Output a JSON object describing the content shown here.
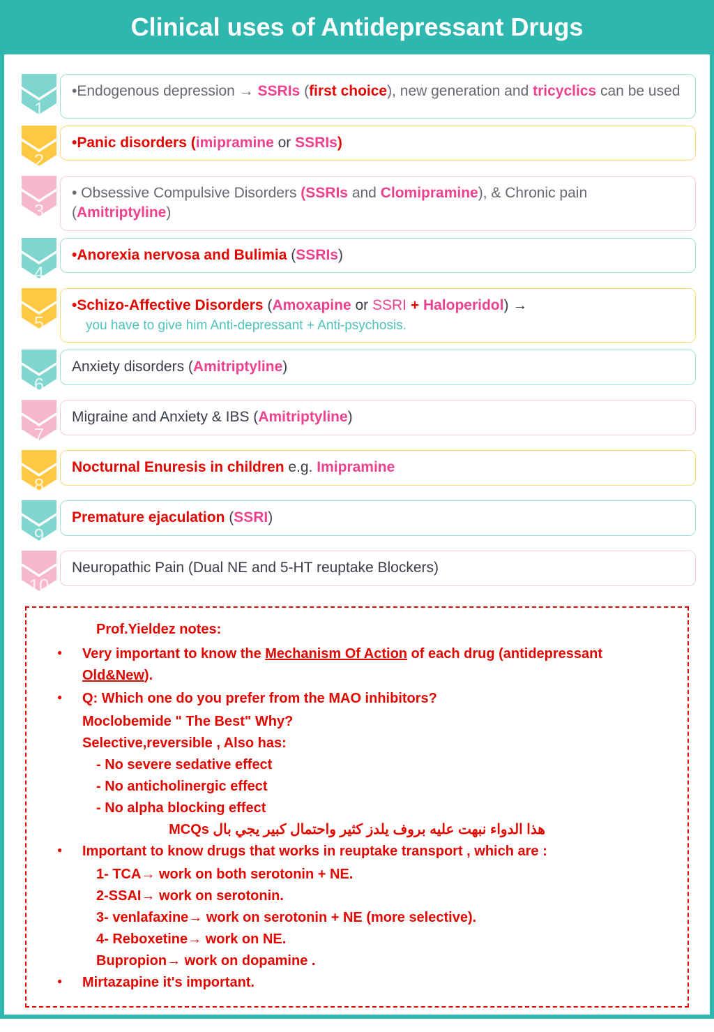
{
  "title": "Clinical uses of Antidepressant Drugs",
  "colors": {
    "teal": "#7fd6cf",
    "yellow": "#ffc842",
    "pink": "#f7b7cb",
    "border_teal": "#9fe0da",
    "border_yellow": "#ffd978",
    "border_pink": "#f9cbd8",
    "txt_red": "#e10600",
    "txt_pink": "#ec428e",
    "txt_teal": "#4fc2ba",
    "txt_gray": "#656772",
    "txt_dark": "#3a3d4a"
  },
  "items": [
    {
      "num": "1",
      "chev": "teal",
      "border": "border_teal",
      "tall": true,
      "segments": [
        {
          "t": "•Endogenous depression → ",
          "cls": "txt-gray"
        },
        {
          "t": "SSRIs ",
          "cls": "txt-pink bold"
        },
        {
          "t": "(",
          "cls": "txt-gray"
        },
        {
          "t": "first choice",
          "cls": "txt-red bold"
        },
        {
          "t": "), new generation and ",
          "cls": "txt-gray"
        },
        {
          "t": "tricyclics",
          "cls": "txt-pink bold"
        },
        {
          "t": " can be used",
          "cls": "txt-gray"
        }
      ]
    },
    {
      "num": "2",
      "chev": "yellow",
      "border": "border_yellow",
      "segments": [
        {
          "t": "•Panic disorders ",
          "cls": "txt-red bold"
        },
        {
          "t": "(",
          "cls": "txt-red bold"
        },
        {
          "t": "imipramine",
          "cls": "txt-pink bold"
        },
        {
          "t": " or ",
          "cls": "txt-dark"
        },
        {
          "t": "SSRIs",
          "cls": "txt-pink bold"
        },
        {
          "t": ")",
          "cls": "txt-red bold"
        }
      ]
    },
    {
      "num": "3",
      "chev": "pink",
      "border": "border_pink",
      "tall": true,
      "segments": [
        {
          "t": "• Obsessive Compulsive Disorders ",
          "cls": "txt-gray"
        },
        {
          "t": "(SSRIs ",
          "cls": "txt-pink bold"
        },
        {
          "t": "and ",
          "cls": "txt-gray"
        },
        {
          "t": "Clomipramine",
          "cls": "txt-pink bold"
        },
        {
          "t": "), & Chronic pain (",
          "cls": "txt-gray"
        },
        {
          "t": "Amitriptyline",
          "cls": "txt-pink bold"
        },
        {
          "t": ")",
          "cls": "txt-gray"
        }
      ]
    },
    {
      "num": "4",
      "chev": "teal",
      "border": "border_teal",
      "segments": [
        {
          "t": "•Anorexia nervosa and Bulimia ",
          "cls": "txt-red bold"
        },
        {
          "t": "(",
          "cls": "txt-dark"
        },
        {
          "t": "SSRIs",
          "cls": "txt-pink bold"
        },
        {
          "t": ")",
          "cls": "txt-dark"
        }
      ]
    },
    {
      "num": "5",
      "chev": "yellow",
      "border": "border_yellow",
      "tall": true,
      "segments": [
        {
          "t": "•Schizo-Affective Disorders ",
          "cls": "txt-red bold"
        },
        {
          "t": "(",
          "cls": "txt-dark"
        },
        {
          "t": "Amoxapine",
          "cls": "txt-pink bold"
        },
        {
          "t": " or ",
          "cls": "txt-dark"
        },
        {
          "t": "SSRI ",
          "cls": "txt-pink"
        },
        {
          "t": " + ",
          "cls": "txt-red bold"
        },
        {
          "t": "Haloperidol",
          "cls": "txt-pink bold"
        },
        {
          "t": ") →",
          "cls": "txt-dark"
        }
      ],
      "sub": {
        "t": "you have to give him Anti-depressant + Anti-psychosis.",
        "cls": "txt-teal"
      }
    },
    {
      "num": "6",
      "chev": "teal",
      "border": "border_teal",
      "segments": [
        {
          "t": "Anxiety disorders (",
          "cls": "txt-dark"
        },
        {
          "t": "Amitriptyline",
          "cls": "txt-pink bold"
        },
        {
          "t": ")",
          "cls": "txt-dark"
        }
      ]
    },
    {
      "num": "7",
      "chev": "pink",
      "border": "border_pink",
      "segments": [
        {
          "t": "Migraine and Anxiety & IBS (",
          "cls": "txt-dark"
        },
        {
          "t": "Amitriptyline",
          "cls": "txt-pink bold"
        },
        {
          "t": ")",
          "cls": "txt-dark"
        }
      ]
    },
    {
      "num": "8",
      "chev": "yellow",
      "border": "border_yellow",
      "segments": [
        {
          "t": "Nocturnal Enuresis in children ",
          "cls": "txt-red bold"
        },
        {
          "t": "e.g. ",
          "cls": "txt-dark"
        },
        {
          "t": "Imipramine",
          "cls": "txt-pink bold"
        }
      ]
    },
    {
      "num": "9",
      "chev": "teal",
      "border": "border_teal",
      "segments": [
        {
          "t": "Premature ejaculation ",
          "cls": "txt-red bold"
        },
        {
          "t": "(",
          "cls": "txt-dark"
        },
        {
          "t": "SSRI",
          "cls": "txt-pink bold"
        },
        {
          "t": ")",
          "cls": "txt-dark"
        }
      ]
    },
    {
      "num": "10",
      "chev": "pink",
      "border": "border_pink",
      "segments": [
        {
          "t": "Neuropathic Pain (Dual NE and 5-HT reuptake Blockers)",
          "cls": "txt-dark"
        }
      ]
    }
  ],
  "notes": {
    "title": "Prof.Yieldez notes:",
    "bullets": [
      {
        "html": "Very important to know the <span class='u'>Mechanism Of Action</span> of each drug (antidepressant <span class='u'>Old&New</span>)."
      },
      {
        "html": "Q: Which one do you prefer from the MAO inhibitors?"
      }
    ],
    "lines1": [
      "Moclobemide \" The Best\" Why?",
      "Selective,reversible , Also has:"
    ],
    "lines2": [
      "- No severe sedative effect",
      "- No anticholinergic effect",
      "- No alpha blocking effect"
    ],
    "arabic": "هذا الدواء نبهت عليه بروف يلدز كثير واحتمال كبير يجي بال MCQs",
    "bullet3": "Important to know drugs that works in reuptake transport , which are :",
    "lines3": [
      "1- TCA→ work on both serotonin + NE.",
      "2-SSAI→ work on serotonin.",
      "3- venlafaxine→ work on serotonin + NE (more selective).",
      "4- Reboxetine→ work on NE.",
      "Bupropion→ work on dopamine ."
    ],
    "bullet4": "Mirtazapine it's important."
  }
}
